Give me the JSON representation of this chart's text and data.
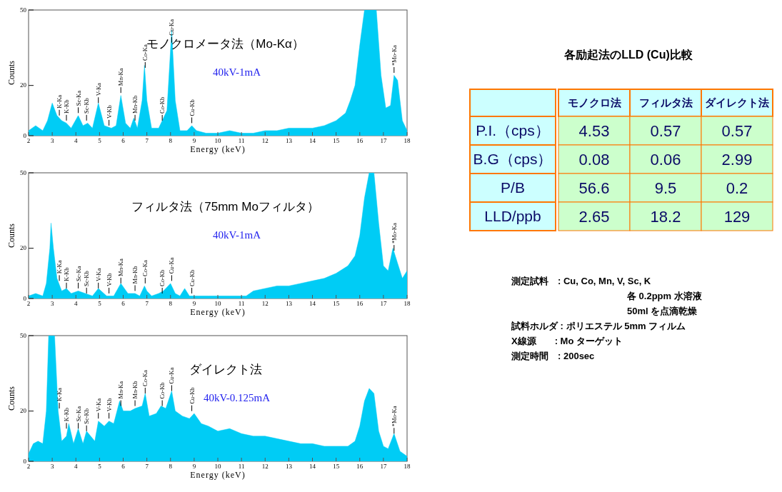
{
  "chart_data": [
    {
      "type": "area",
      "title": "モノクロメータ法（Mo-Kα）",
      "subtitle": "40kV-1mA",
      "xlabel": "Energy (keV)",
      "ylabel": "Counts",
      "xlim": [
        2,
        18
      ],
      "xticks": [
        2,
        3,
        4,
        5,
        6,
        7,
        8,
        9,
        10,
        11,
        12,
        13,
        14,
        15,
        16,
        17,
        18
      ],
      "ylim": [
        0,
        50
      ],
      "yticks": [
        0,
        20,
        50
      ],
      "grid": false,
      "series": [
        {
          "color": "#00ccf5",
          "x": [
            2,
            2.3,
            2.6,
            2.8,
            3.0,
            3.2,
            3.4,
            3.6,
            3.8,
            4.1,
            4.3,
            4.5,
            4.7,
            4.95,
            5.2,
            5.5,
            5.7,
            5.9,
            6.1,
            6.3,
            6.45,
            6.6,
            6.8,
            6.9,
            7.0,
            7.2,
            7.5,
            7.65,
            7.85,
            8.05,
            8.2,
            8.4,
            8.7,
            8.9,
            9.1,
            9.5,
            10,
            10.5,
            11,
            11.5,
            12,
            12.5,
            13,
            13.5,
            14,
            14.5,
            15,
            15.4,
            15.6,
            15.8,
            16.0,
            16.2,
            16.7,
            16.9,
            17.1,
            17.3,
            17.45,
            17.6,
            17.8,
            18
          ],
          "values": [
            2,
            4,
            2,
            6,
            13,
            8,
            6,
            5,
            3,
            8,
            4,
            5,
            3,
            13,
            4,
            3,
            4,
            16,
            5,
            3,
            7,
            3,
            14,
            28,
            14,
            3,
            3,
            6,
            10,
            42,
            14,
            2,
            2,
            4,
            2,
            1,
            1,
            2,
            1,
            1,
            2,
            2,
            3,
            3,
            3,
            4,
            6,
            9,
            14,
            20,
            36,
            50,
            50,
            24,
            11,
            12,
            24,
            22,
            6,
            2
          ]
        }
      ],
      "annotations": [
        {
          "text": "K-Ka",
          "x": 3.3,
          "y": 8
        },
        {
          "text": "K-Kb",
          "x": 3.6,
          "y": 6
        },
        {
          "text": "Sc-Ka",
          "x": 4.1,
          "y": 9
        },
        {
          "text": "Sc-Kb",
          "x": 4.45,
          "y": 6
        },
        {
          "text": "V-Ka",
          "x": 4.95,
          "y": 13
        },
        {
          "text": "V-Kb",
          "x": 5.4,
          "y": 4
        },
        {
          "text": "Mn-Ka",
          "x": 5.9,
          "y": 17
        },
        {
          "text": "Mn-Kb",
          "x": 6.5,
          "y": 6
        },
        {
          "text": "Co-Ka",
          "x": 6.93,
          "y": 27
        },
        {
          "text": "Co-Kb",
          "x": 7.65,
          "y": 6
        },
        {
          "text": "Cu-Ka",
          "x": 8.05,
          "y": 37
        },
        {
          "text": "Cu-Kb",
          "x": 8.9,
          "y": 5
        },
        {
          "text": "*Mo-Ka",
          "x": 17.45,
          "y": 25
        }
      ]
    },
    {
      "type": "area",
      "title": "フィルタ法（75mm Moフィルタ）",
      "subtitle": "40kV-1mA",
      "xlabel": "Energy (keV)",
      "ylabel": "Counts",
      "xlim": [
        2,
        18
      ],
      "xticks": [
        2,
        3,
        4,
        5,
        6,
        7,
        8,
        9,
        10,
        11,
        12,
        13,
        14,
        15,
        16,
        17,
        18
      ],
      "ylim": [
        0,
        50
      ],
      "yticks": [
        0,
        20,
        50
      ],
      "grid": false,
      "series": [
        {
          "color": "#00ccf5",
          "x": [
            2,
            2.3,
            2.6,
            2.75,
            2.9,
            2.95,
            3.05,
            3.2,
            3.4,
            3.6,
            3.8,
            4.1,
            4.4,
            4.7,
            4.95,
            5.3,
            5.6,
            5.9,
            6.2,
            6.5,
            6.7,
            6.9,
            7.0,
            7.2,
            7.5,
            7.7,
            8.0,
            8.2,
            8.4,
            8.6,
            8.8,
            9.2,
            9.6,
            10,
            10.5,
            11,
            11.2,
            11.5,
            12,
            12.5,
            13,
            13.5,
            14,
            14.5,
            15,
            15.5,
            15.8,
            16.0,
            16.2,
            16.4,
            16.6,
            16.8,
            17.0,
            17.2,
            17.4,
            17.6,
            17.8,
            18
          ],
          "values": [
            1,
            2,
            1,
            6,
            20,
            30,
            20,
            8,
            3,
            4,
            2,
            3,
            2,
            1,
            4,
            1,
            1,
            6,
            2,
            2,
            1,
            5,
            3,
            1,
            2,
            3,
            6,
            2,
            1,
            4,
            1,
            1,
            1,
            1,
            1,
            1,
            1,
            3,
            4,
            5,
            5,
            6,
            7,
            8,
            10,
            13,
            17,
            25,
            40,
            50,
            50,
            30,
            13,
            11,
            20,
            14,
            8,
            11
          ]
        }
      ],
      "annotations": [
        {
          "text": "K-Ka",
          "x": 3.3,
          "y": 7
        },
        {
          "text": "K-Kb",
          "x": 3.6,
          "y": 4
        },
        {
          "text": "Sc-Ka",
          "x": 4.1,
          "y": 4
        },
        {
          "text": "Sc-Kb",
          "x": 4.45,
          "y": 2
        },
        {
          "text": "V-Ka",
          "x": 4.95,
          "y": 4
        },
        {
          "text": "V-Kb",
          "x": 5.4,
          "y": 2
        },
        {
          "text": "Mn-Ka",
          "x": 5.9,
          "y": 6
        },
        {
          "text": "Mn-Kb",
          "x": 6.5,
          "y": 3
        },
        {
          "text": "Co-Ka",
          "x": 6.93,
          "y": 6
        },
        {
          "text": "Co-Kb",
          "x": 7.65,
          "y": 2
        },
        {
          "text": "Cu-Ka",
          "x": 8.05,
          "y": 7
        },
        {
          "text": "Cu-Kb",
          "x": 8.9,
          "y": 2
        },
        {
          "text": "*Mo-Ka",
          "x": 17.45,
          "y": 19
        }
      ]
    },
    {
      "type": "area",
      "title": "ダイレクト法",
      "subtitle": "40kV-0.125mA",
      "xlabel": "Energy (keV)",
      "ylabel": "Counts",
      "xlim": [
        2,
        18
      ],
      "xticks": [
        2,
        3,
        4,
        5,
        6,
        7,
        8,
        9,
        10,
        11,
        12,
        13,
        14,
        15,
        16,
        17,
        18
      ],
      "ylim": [
        0,
        50
      ],
      "yticks": [
        0,
        20,
        50
      ],
      "grid": false,
      "series": [
        {
          "color": "#00ccf5",
          "x": [
            2,
            2.2,
            2.4,
            2.6,
            2.75,
            2.85,
            3.1,
            3.25,
            3.4,
            3.6,
            3.7,
            3.9,
            4.1,
            4.3,
            4.45,
            4.8,
            4.95,
            5.2,
            5.4,
            5.6,
            5.85,
            6.0,
            6.3,
            6.5,
            6.8,
            6.93,
            7.1,
            7.4,
            7.6,
            7.8,
            8.05,
            8.2,
            8.5,
            8.8,
            9.0,
            9.3,
            9.6,
            10,
            10.5,
            11,
            11.5,
            12,
            12.5,
            13,
            13.5,
            14,
            14.5,
            15,
            15.5,
            15.8,
            16.0,
            16.2,
            16.4,
            16.6,
            16.8,
            17.0,
            17.2,
            17.45,
            17.7,
            18
          ],
          "values": [
            3,
            7,
            8,
            7,
            20,
            50,
            50,
            20,
            8,
            10,
            15,
            7,
            13,
            7,
            12,
            8,
            16,
            14,
            16,
            15,
            24,
            20,
            20,
            21,
            22,
            27,
            18,
            19,
            22,
            21,
            28,
            20,
            18,
            17,
            19,
            15,
            14,
            12,
            13,
            11,
            10,
            10,
            9,
            8,
            7,
            7,
            6,
            6,
            6,
            8,
            14,
            24,
            29,
            27,
            12,
            6,
            5,
            11,
            4,
            2
          ]
        }
      ],
      "annotations": [
        {
          "text": "K-Ka",
          "x": 3.3,
          "y": 21
        },
        {
          "text": "K-Kb",
          "x": 3.6,
          "y": 13
        },
        {
          "text": "Sc-Ka",
          "x": 4.1,
          "y": 13
        },
        {
          "text": "Sc-Kb",
          "x": 4.45,
          "y": 12
        },
        {
          "text": "V-Ka",
          "x": 4.95,
          "y": 17
        },
        {
          "text": "V-Kb",
          "x": 5.4,
          "y": 17
        },
        {
          "text": "Mn-Ka",
          "x": 5.9,
          "y": 22
        },
        {
          "text": "Mn-Kb",
          "x": 6.5,
          "y": 22
        },
        {
          "text": "Co-Ka",
          "x": 6.93,
          "y": 27
        },
        {
          "text": "Co-Kb",
          "x": 7.65,
          "y": 22
        },
        {
          "text": "Cu-Ka",
          "x": 8.05,
          "y": 28
        },
        {
          "text": "Cu-Kb",
          "x": 8.9,
          "y": 20
        },
        {
          "text": "*Mo-Ka",
          "x": 17.45,
          "y": 11
        }
      ]
    },
    {
      "type": "other",
      "title": "各励起法のLLD (Cu)比較",
      "categories": [
        "モノクロ法",
        "フィルタ法",
        "ダイレクト法"
      ],
      "y_categories": [
        "P.I.（cps）",
        "B.G（cps）",
        "P/B",
        "LLD/ppb"
      ],
      "cell_labels": [
        [
          "4.53",
          "0.57",
          "0.57"
        ],
        [
          "0.08",
          "0.06",
          "2.99"
        ],
        [
          "56.6",
          "9.5",
          "0.2"
        ],
        [
          "2.65",
          "18.2",
          "129"
        ]
      ],
      "annotations": [
        "測定試料　: Cu, Co, Mn, V, Sc, K",
        "各 0.2ppm 水溶液",
        "50ml を点滴乾燥",
        "試料ホルダ : ポリエステル 5mm フィルム",
        "X線源　　: Mo ターゲット",
        "測定時間　: 200sec"
      ]
    }
  ]
}
